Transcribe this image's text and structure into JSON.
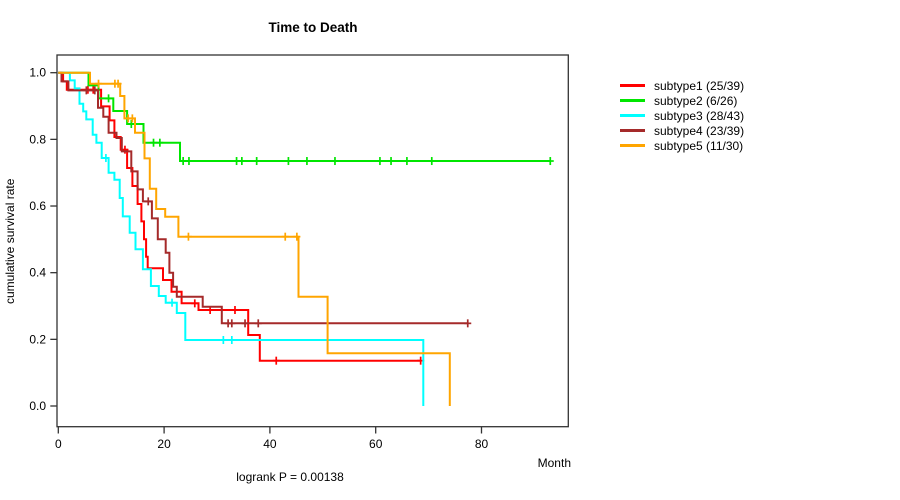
{
  "title": "Time to Death",
  "footnote": "logrank P = 0.00138",
  "chart_data": {
    "type": "line",
    "subtype": "kaplan-meier-step",
    "title": "Time to Death",
    "xlabel": "Month",
    "ylabel": "cumulative survival rate",
    "footnote": "logrank P = 0.00138",
    "xlim": [
      0,
      96
    ],
    "ylim": [
      0.0,
      1.0
    ],
    "x_ticks": [
      0,
      20,
      40,
      60,
      80
    ],
    "y_ticks": [
      0.0,
      0.2,
      0.4,
      0.6,
      0.8,
      1.0
    ],
    "grid": false,
    "legend_position": "right",
    "axis_color": "#333333",
    "series": [
      {
        "name": "subtype1",
        "label": "subtype1 (25/39)",
        "events": 25,
        "n": 39,
        "color": "#ff0000",
        "points": [
          [
            0,
            1.0
          ],
          [
            0.9,
            0.974
          ],
          [
            1.6,
            0.949
          ],
          [
            8.1,
            0.899
          ],
          [
            9.7,
            0.857
          ],
          [
            10.6,
            0.807
          ],
          [
            11.8,
            0.769
          ],
          [
            13.0,
            0.714
          ],
          [
            14.0,
            0.66
          ],
          [
            15.0,
            0.606
          ],
          [
            15.7,
            0.554
          ],
          [
            16.2,
            0.5
          ],
          [
            16.6,
            0.448
          ],
          [
            16.9,
            0.413
          ],
          [
            19.8,
            0.378
          ],
          [
            21.4,
            0.343
          ],
          [
            23.3,
            0.308
          ],
          [
            26.5,
            0.288
          ],
          [
            35.9,
            0.213
          ],
          [
            38.1,
            0.136
          ]
        ],
        "end": 68.5,
        "censor_times": [
          5.6,
          6.6,
          12.6,
          25.8,
          28.7,
          33.4,
          41.2,
          68.5
        ]
      },
      {
        "name": "subtype2",
        "label": "subtype2 (6/26)",
        "events": 6,
        "n": 26,
        "color": "#00e600",
        "points": [
          [
            0,
            1.0
          ],
          [
            5.7,
            0.962
          ],
          [
            7.6,
            0.923
          ],
          [
            10.4,
            0.885
          ],
          [
            13.0,
            0.846
          ],
          [
            16.1,
            0.79
          ],
          [
            23.0,
            0.735
          ]
        ],
        "end": 93.0,
        "censor_times": [
          9.5,
          13.8,
          14.5,
          18.0,
          19.2,
          23.6,
          24.7,
          33.7,
          34.7,
          37.5,
          43.5,
          47.0,
          52.3,
          60.8,
          62.9,
          65.9,
          70.6,
          93.0
        ]
      },
      {
        "name": "subtype3",
        "label": "subtype3 (28/43)",
        "events": 28,
        "n": 43,
        "color": "#00ffff",
        "points": [
          [
            0,
            1.0
          ],
          [
            2.2,
            0.977
          ],
          [
            3.1,
            0.953
          ],
          [
            4.0,
            0.907
          ],
          [
            4.7,
            0.884
          ],
          [
            5.3,
            0.86
          ],
          [
            6.5,
            0.814
          ],
          [
            7.2,
            0.79
          ],
          [
            8.2,
            0.744
          ],
          [
            9.5,
            0.7
          ],
          [
            10.6,
            0.679
          ],
          [
            11.6,
            0.624
          ],
          [
            12.2,
            0.569
          ],
          [
            13.5,
            0.52
          ],
          [
            14.6,
            0.47
          ],
          [
            16.0,
            0.41
          ],
          [
            17.5,
            0.36
          ],
          [
            19.0,
            0.33
          ],
          [
            20.3,
            0.31
          ],
          [
            22.4,
            0.279
          ],
          [
            24.0,
            0.198
          ],
          [
            69.0,
            0.0
          ]
        ],
        "end": 69.0,
        "censor_times": [
          9.0,
          21.5,
          31.2,
          32.8
        ]
      },
      {
        "name": "subtype4",
        "label": "subtype4 (23/39)",
        "events": 23,
        "n": 39,
        "color": "#a52a2a",
        "points": [
          [
            0,
            1.0
          ],
          [
            0.6,
            0.974
          ],
          [
            1.9,
            0.947
          ],
          [
            7.5,
            0.895
          ],
          [
            8.5,
            0.868
          ],
          [
            9.5,
            0.82
          ],
          [
            11.0,
            0.804
          ],
          [
            12.0,
            0.764
          ],
          [
            13.8,
            0.704
          ],
          [
            15.0,
            0.65
          ],
          [
            16.0,
            0.614
          ],
          [
            17.7,
            0.563
          ],
          [
            18.8,
            0.5
          ],
          [
            20.3,
            0.46
          ],
          [
            21.0,
            0.4
          ],
          [
            21.7,
            0.358
          ],
          [
            22.4,
            0.328
          ],
          [
            27.3,
            0.298
          ],
          [
            30.9,
            0.248
          ]
        ],
        "end": 77.4,
        "censor_times": [
          5.3,
          6.9,
          17.0,
          32.1,
          32.8,
          35.3,
          37.8,
          77.4
        ]
      },
      {
        "name": "subtype5",
        "label": "subtype5 (11/30)",
        "events": 11,
        "n": 30,
        "color": "#ffa500",
        "points": [
          [
            0,
            1.0
          ],
          [
            6.0,
            0.967
          ],
          [
            11.7,
            0.93
          ],
          [
            12.5,
            0.863
          ],
          [
            14.5,
            0.82
          ],
          [
            16.3,
            0.743
          ],
          [
            17.3,
            0.652
          ],
          [
            18.5,
            0.591
          ],
          [
            20.2,
            0.568
          ],
          [
            22.7,
            0.508
          ],
          [
            45.4,
            0.328
          ],
          [
            50.9,
            0.158
          ],
          [
            74.0,
            0.0
          ]
        ],
        "end": 74.0,
        "censor_times": [
          7.6,
          10.7,
          11.3,
          13.2,
          14.0,
          24.6,
          42.9,
          45.1
        ]
      }
    ]
  }
}
